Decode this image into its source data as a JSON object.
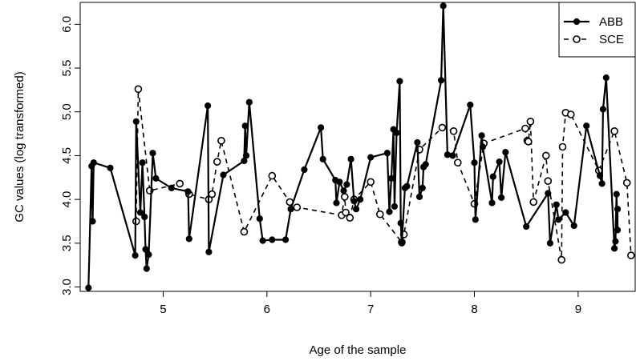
{
  "chart_data": {
    "type": "line",
    "title": "",
    "xlabel": "Age of the sample",
    "ylabel": "GC values (log transformed)",
    "xlim": [
      4.2,
      9.55
    ],
    "ylim": [
      2.95,
      6.25
    ],
    "x_ticks": [
      "5",
      "6",
      "7",
      "8",
      "9"
    ],
    "y_ticks": [
      "3.0",
      "3.5",
      "4.0",
      "4.5",
      "5.0",
      "5.5",
      "6.0"
    ],
    "legend_position": "top-right",
    "grid": false,
    "series": [
      {
        "name": "ABB",
        "style": "solid",
        "marker": "filled-circle",
        "color": "#000000",
        "points": [
          [
            4.28,
            2.99
          ],
          [
            4.31,
            4.38
          ],
          [
            4.32,
            3.75
          ],
          [
            4.33,
            4.42
          ],
          [
            4.49,
            4.36
          ],
          [
            4.73,
            3.36
          ],
          [
            4.74,
            4.89
          ],
          [
            4.78,
            3.85
          ],
          [
            4.8,
            4.42
          ],
          [
            4.82,
            3.8
          ],
          [
            4.83,
            3.43
          ],
          [
            4.84,
            3.21
          ],
          [
            4.86,
            3.37
          ],
          [
            4.9,
            4.53
          ],
          [
            4.93,
            4.24
          ],
          [
            5.08,
            4.13
          ],
          [
            5.24,
            4.09
          ],
          [
            5.25,
            3.55
          ],
          [
            5.43,
            5.07
          ],
          [
            5.44,
            3.4
          ],
          [
            5.58,
            4.28
          ],
          [
            5.78,
            4.44
          ],
          [
            5.79,
            4.84
          ],
          [
            5.8,
            4.5
          ],
          [
            5.83,
            5.11
          ],
          [
            5.93,
            3.78
          ],
          [
            5.96,
            3.53
          ],
          [
            6.05,
            3.54
          ],
          [
            6.18,
            3.54
          ],
          [
            6.23,
            3.89
          ],
          [
            6.36,
            4.34
          ],
          [
            6.52,
            4.82
          ],
          [
            6.54,
            4.46
          ],
          [
            6.66,
            4.22
          ],
          [
            6.67,
            3.96
          ],
          [
            6.7,
            4.2
          ],
          [
            6.74,
            4.1
          ],
          [
            6.77,
            4.17
          ],
          [
            6.81,
            4.46
          ],
          [
            6.84,
            3.98
          ],
          [
            6.86,
            3.89
          ],
          [
            6.9,
            4.0
          ],
          [
            7.0,
            4.48
          ],
          [
            7.16,
            4.53
          ],
          [
            7.18,
            3.86
          ],
          [
            7.2,
            4.24
          ],
          [
            7.22,
            4.8
          ],
          [
            7.23,
            3.92
          ],
          [
            7.25,
            4.76
          ],
          [
            7.28,
            5.35
          ],
          [
            7.29,
            3.73
          ],
          [
            7.3,
            3.5
          ],
          [
            7.33,
            4.13
          ],
          [
            7.35,
            4.15
          ],
          [
            7.45,
            4.65
          ],
          [
            7.47,
            4.03
          ],
          [
            7.5,
            4.13
          ],
          [
            7.51,
            4.37
          ],
          [
            7.53,
            4.4
          ],
          [
            7.68,
            5.36
          ],
          [
            7.7,
            6.21
          ],
          [
            7.74,
            4.51
          ],
          [
            7.79,
            4.5
          ],
          [
            7.96,
            5.08
          ],
          [
            8.0,
            4.42
          ],
          [
            8.01,
            3.77
          ],
          [
            8.07,
            4.73
          ],
          [
            8.08,
            4.6
          ],
          [
            8.17,
            3.96
          ],
          [
            8.18,
            4.26
          ],
          [
            8.24,
            4.43
          ],
          [
            8.26,
            4.02
          ],
          [
            8.3,
            4.54
          ],
          [
            8.5,
            3.69
          ],
          [
            8.71,
            4.07
          ],
          [
            8.73,
            3.5
          ],
          [
            8.79,
            3.94
          ],
          [
            8.81,
            3.77
          ],
          [
            8.88,
            3.85
          ],
          [
            8.96,
            3.7
          ],
          [
            9.08,
            4.84
          ],
          [
            9.21,
            4.27
          ],
          [
            9.23,
            4.18
          ],
          [
            9.24,
            5.03
          ],
          [
            9.27,
            5.39
          ],
          [
            9.35,
            3.44
          ],
          [
            9.36,
            3.52
          ],
          [
            9.37,
            4.06
          ],
          [
            9.38,
            3.65
          ],
          [
            9.38,
            3.89
          ]
        ]
      },
      {
        "name": "SCE",
        "style": "dashed",
        "marker": "open-circle",
        "color": "#000000",
        "points": [
          [
            4.74,
            3.75
          ],
          [
            4.76,
            5.26
          ],
          [
            4.87,
            4.1
          ],
          [
            5.16,
            4.18
          ],
          [
            5.25,
            4.06
          ],
          [
            5.44,
            4.0
          ],
          [
            5.47,
            4.06
          ],
          [
            5.52,
            4.43
          ],
          [
            5.56,
            4.67
          ],
          [
            5.78,
            3.63
          ],
          [
            6.05,
            4.27
          ],
          [
            6.22,
            3.97
          ],
          [
            6.29,
            3.91
          ],
          [
            6.72,
            3.82
          ],
          [
            6.75,
            4.03
          ],
          [
            6.76,
            3.85
          ],
          [
            6.8,
            3.79
          ],
          [
            6.84,
            4.0
          ],
          [
            7.0,
            4.2
          ],
          [
            7.09,
            3.83
          ],
          [
            7.3,
            3.51
          ],
          [
            7.32,
            3.6
          ],
          [
            7.47,
            4.57
          ],
          [
            7.69,
            4.82
          ],
          [
            7.8,
            4.78
          ],
          [
            7.84,
            4.42
          ],
          [
            8.0,
            3.95
          ],
          [
            8.09,
            4.64
          ],
          [
            8.49,
            4.81
          ],
          [
            8.51,
            4.67
          ],
          [
            8.52,
            4.66
          ],
          [
            8.54,
            4.89
          ],
          [
            8.57,
            3.97
          ],
          [
            8.69,
            4.5
          ],
          [
            8.71,
            4.21
          ],
          [
            8.84,
            3.31
          ],
          [
            8.85,
            4.6
          ],
          [
            8.88,
            4.99
          ],
          [
            8.93,
            4.97
          ],
          [
            9.2,
            4.33
          ],
          [
            9.35,
            4.78
          ],
          [
            9.47,
            4.19
          ],
          [
            9.51,
            3.36
          ]
        ]
      }
    ]
  }
}
